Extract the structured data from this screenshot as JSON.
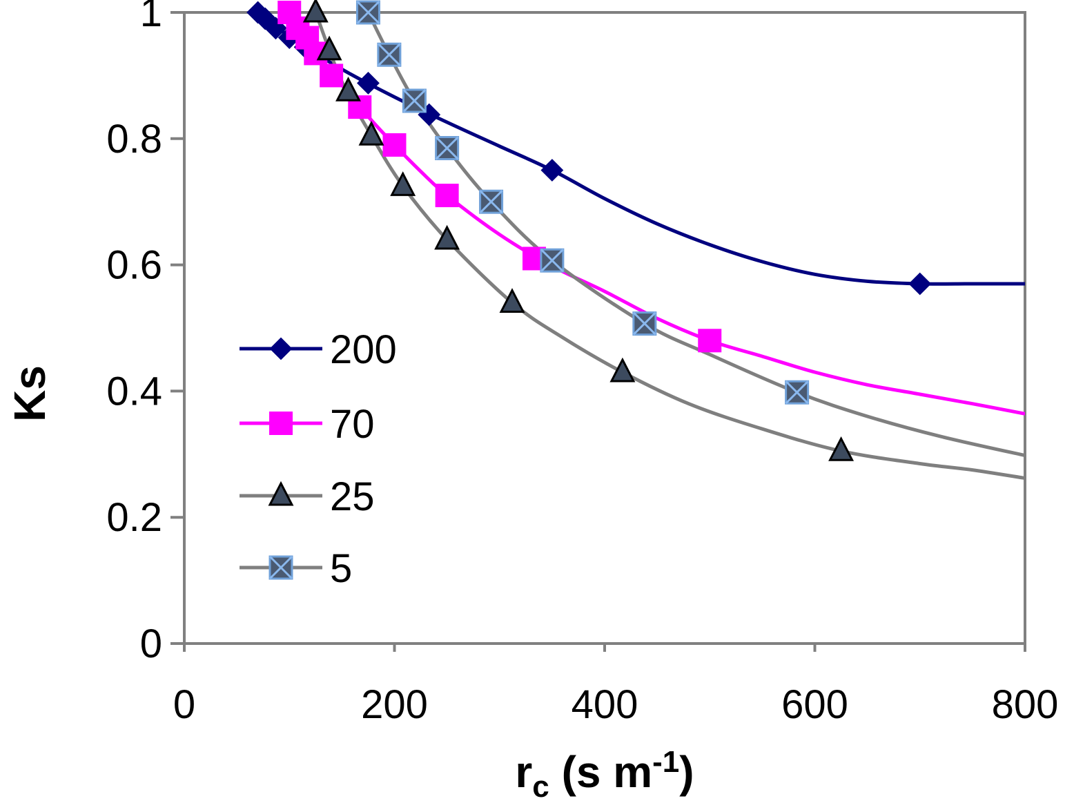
{
  "chart_data": {
    "type": "line",
    "title": "",
    "xlabel": "r",
    "xlabel_sub": "c",
    "xlabel_units": " (s m",
    "xlabel_sup": "-1",
    "xlabel_close": ")",
    "ylabel": "Ks",
    "xlim": [
      0,
      800
    ],
    "ylim": [
      0,
      1
    ],
    "xticks": [
      0,
      200,
      400,
      600,
      800
    ],
    "yticks": [
      0,
      0.2,
      0.4,
      0.6,
      0.8,
      1
    ],
    "xtick_labels": [
      "0",
      "200",
      "400",
      "600",
      "800"
    ],
    "ytick_labels": [
      "0",
      "0.2",
      "0.4",
      "0.6",
      "0.8",
      "1"
    ],
    "grid": false,
    "legend_position": "left-middle",
    "series": [
      {
        "name": "200",
        "color": "#00007f",
        "marker": "diamond",
        "points": [
          [
            70,
            1.0
          ],
          [
            77,
            0.99
          ],
          [
            87,
            0.975
          ],
          [
            100,
            0.96
          ],
          [
            115,
            0.945
          ],
          [
            175,
            0.888
          ],
          [
            233,
            0.838
          ],
          [
            350,
            0.75
          ],
          [
            700,
            0.57
          ]
        ],
        "curve": [
          [
            70,
            1.0
          ],
          [
            100,
            0.962
          ],
          [
            150,
            0.91
          ],
          [
            200,
            0.866
          ],
          [
            250,
            0.826
          ],
          [
            300,
            0.788
          ],
          [
            350,
            0.75
          ],
          [
            400,
            0.705
          ],
          [
            450,
            0.665
          ],
          [
            500,
            0.632
          ],
          [
            550,
            0.605
          ],
          [
            600,
            0.585
          ],
          [
            650,
            0.574
          ],
          [
            700,
            0.57
          ],
          [
            750,
            0.57
          ],
          [
            800,
            0.57
          ]
        ]
      },
      {
        "name": "70",
        "color": "#ff00ff",
        "marker": "square",
        "points": [
          [
            100,
            1.0
          ],
          [
            108,
            0.975
          ],
          [
            117,
            0.96
          ],
          [
            125,
            0.935
          ],
          [
            140,
            0.9
          ],
          [
            167,
            0.85
          ],
          [
            200,
            0.79
          ],
          [
            250,
            0.71
          ],
          [
            333,
            0.61
          ],
          [
            500,
            0.48
          ]
        ],
        "curve": [
          [
            100,
            1.0
          ],
          [
            125,
            0.937
          ],
          [
            150,
            0.885
          ],
          [
            175,
            0.835
          ],
          [
            200,
            0.79
          ],
          [
            225,
            0.748
          ],
          [
            250,
            0.71
          ],
          [
            300,
            0.648
          ],
          [
            350,
            0.598
          ],
          [
            400,
            0.558
          ],
          [
            450,
            0.515
          ],
          [
            500,
            0.48
          ],
          [
            550,
            0.455
          ],
          [
            600,
            0.43
          ],
          [
            650,
            0.41
          ],
          [
            700,
            0.395
          ],
          [
            750,
            0.38
          ],
          [
            800,
            0.364
          ]
        ]
      },
      {
        "name": "25",
        "color": "#7f7f7f",
        "marker": "triangle",
        "points": [
          [
            125,
            1.0
          ],
          [
            138,
            0.94
          ],
          [
            156,
            0.875
          ],
          [
            178,
            0.805
          ],
          [
            208,
            0.725
          ],
          [
            250,
            0.64
          ],
          [
            312,
            0.54
          ],
          [
            417,
            0.43
          ],
          [
            625,
            0.305
          ]
        ],
        "curve": [
          [
            125,
            1.0
          ],
          [
            150,
            0.89
          ],
          [
            178,
            0.805
          ],
          [
            208,
            0.725
          ],
          [
            250,
            0.64
          ],
          [
            312,
            0.54
          ],
          [
            360,
            0.485
          ],
          [
            417,
            0.43
          ],
          [
            480,
            0.38
          ],
          [
            550,
            0.34
          ],
          [
            625,
            0.305
          ],
          [
            700,
            0.285
          ],
          [
            750,
            0.275
          ],
          [
            800,
            0.262
          ]
        ]
      },
      {
        "name": "5",
        "color": "#7f7f7f",
        "marker": "x-square",
        "points": [
          [
            175,
            1.0
          ],
          [
            195,
            0.933
          ],
          [
            219,
            0.86
          ],
          [
            250,
            0.785
          ],
          [
            292,
            0.7
          ],
          [
            350,
            0.607
          ],
          [
            438,
            0.507
          ],
          [
            583,
            0.398
          ]
        ],
        "curve": [
          [
            175,
            1.0
          ],
          [
            195,
            0.933
          ],
          [
            219,
            0.86
          ],
          [
            250,
            0.785
          ],
          [
            292,
            0.7
          ],
          [
            350,
            0.607
          ],
          [
            438,
            0.507
          ],
          [
            500,
            0.458
          ],
          [
            583,
            0.398
          ],
          [
            650,
            0.36
          ],
          [
            720,
            0.328
          ],
          [
            800,
            0.298
          ]
        ]
      }
    ]
  }
}
